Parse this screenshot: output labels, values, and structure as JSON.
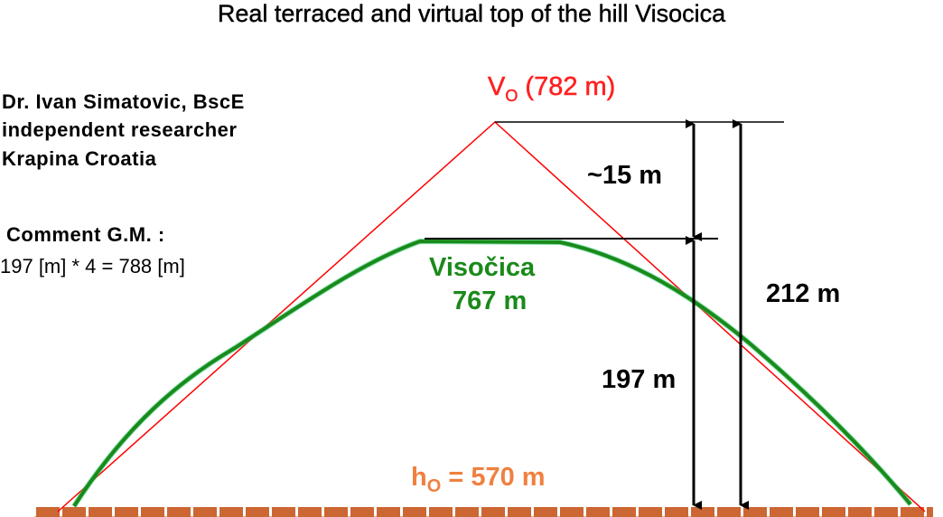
{
  "title": "Real terraced and virtual top of the hill Visocica",
  "author": {
    "line1": "Dr. Ivan Simatovic, BscE",
    "line2": "independent researcher",
    "line3": "Krapina Croatia"
  },
  "comment": {
    "heading": "Comment G.M. :",
    "formula": "197 [m] * 4 = 788 [m]"
  },
  "labels": {
    "virtual_top_symbol": "V",
    "virtual_top_sub": "O",
    "virtual_top_value": "(782 m)",
    "difference": "~15 m",
    "hill_name": "Visočica",
    "hill_height": "767 m",
    "total_height": "212 m",
    "real_height": "197 m",
    "base_symbol": "h",
    "base_sub": "O",
    "base_value": "= 570 m"
  },
  "colors": {
    "virtual_outline": "#ff0000",
    "hill_profile": "#1a8a1a",
    "hill_profile_light": "#33cc77",
    "base_ground": "#cc6633",
    "base_label": "#f08040",
    "dimension_lines": "#000000"
  }
}
